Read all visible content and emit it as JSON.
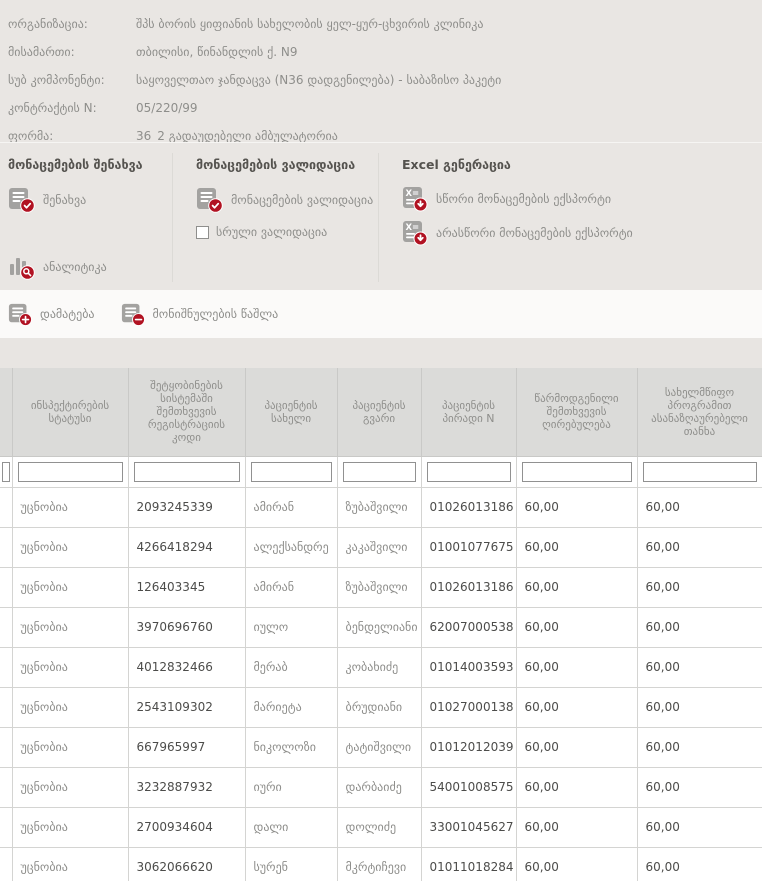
{
  "info": {
    "rows": [
      {
        "label": "ორგანიზაცია:",
        "value": "შპს ბორის ყიფიანის სახელობის ყელ-ყურ-ცხვირის კლინიკა"
      },
      {
        "label": "მისამართი:",
        "value": "თბილისი, წინანდლის ქ. N9"
      },
      {
        "label": "სუბ კომპონენტი:",
        "value": "საყოველთაო ჯანდაცვა (N36 დადგენილება) - საბაზისო პაკეტი"
      },
      {
        "label": "კონტრაქტის N:",
        "value": "05/220/99"
      },
      {
        "label": "ფორმა:",
        "value": "36_2 გადაუდებელი ამბულატორია"
      }
    ]
  },
  "actions": {
    "save_group": {
      "title": "მონაცემების შენახვა",
      "save_label": "შენახვა",
      "analytics_label": "ანალიტიკა"
    },
    "validation_group": {
      "title": "მონაცემების ვალიდაცია",
      "validate_label": "მონაცემების ვალიდაცია",
      "full_validation_label": "სრული ვალიდაცია",
      "full_validation_checked": false
    },
    "excel_group": {
      "title": "Excel გენერაცია",
      "export_valid_label": "სწორი მონაცემების ექსპორტი",
      "export_invalid_label": "არასწორი მონაცემების ექსპორტი"
    }
  },
  "toolbar": {
    "add_label": "დამატება",
    "delete_selected_label": "მონიშნულების წაშლა"
  },
  "table": {
    "columns": [
      "ინსპექტირების სტატუსი",
      "შეტყობინების სისტემაში შემთხვევის რეგისტრაციის კოდი",
      "პაციენტის სახელი",
      "პაციენტის გვარი",
      "პაციენტის პირადი N",
      "წარმოდგენილი შემთხვევის ღირებულება",
      "სახელმწიფო პროგრამით ასანაზღაურებელი თანხა"
    ],
    "rows": [
      [
        "უცნობია",
        "2093245339",
        "ამირან",
        "ზუბაშვილი",
        "01026013186",
        "60,00",
        "60,00"
      ],
      [
        "უცნობია",
        "4266418294",
        "ალექსანდრე",
        "კაკაშვილი",
        "01001077675",
        "60,00",
        "60,00"
      ],
      [
        "უცნობია",
        "126403345",
        "ამირან",
        "ზუბაშვილი",
        "01026013186",
        "60,00",
        "60,00"
      ],
      [
        "უცნობია",
        "3970696760",
        "იულო",
        "ბენდელიანი",
        "62007000538",
        "60,00",
        "60,00"
      ],
      [
        "უცნობია",
        "4012832466",
        "მერაბ",
        "კობახიძე",
        "01014003593",
        "60,00",
        "60,00"
      ],
      [
        "უცნობია",
        "2543109302",
        "მარიეტა",
        "ბრუდიანი",
        "01027000138",
        "60,00",
        "60,00"
      ],
      [
        "უცნობია",
        "667965997",
        "ნიკოლოზი",
        "ტატიშვილი",
        "01012012039",
        "60,00",
        "60,00"
      ],
      [
        "უცნობია",
        "3232887932",
        "იური",
        "დარბაიძე",
        "54001008575",
        "60,00",
        "60,00"
      ],
      [
        "უცნობია",
        "2700934604",
        "დალი",
        "დოლიძე",
        "33001045627",
        "60,00",
        "60,00"
      ],
      [
        "უცნობია",
        "3062066620",
        "სურენ",
        "მკრტიჩევი",
        "01011018284",
        "60,00",
        "60,00"
      ]
    ]
  },
  "colors": {
    "accent_red": "#b11222",
    "panel_bg": "#e9e6e3",
    "table_header_bg": "#dbdbd9",
    "icon_gray": "#a3a2a0",
    "gray_text": "#8e8e8b",
    "dark_text": "#4c4c4a"
  }
}
